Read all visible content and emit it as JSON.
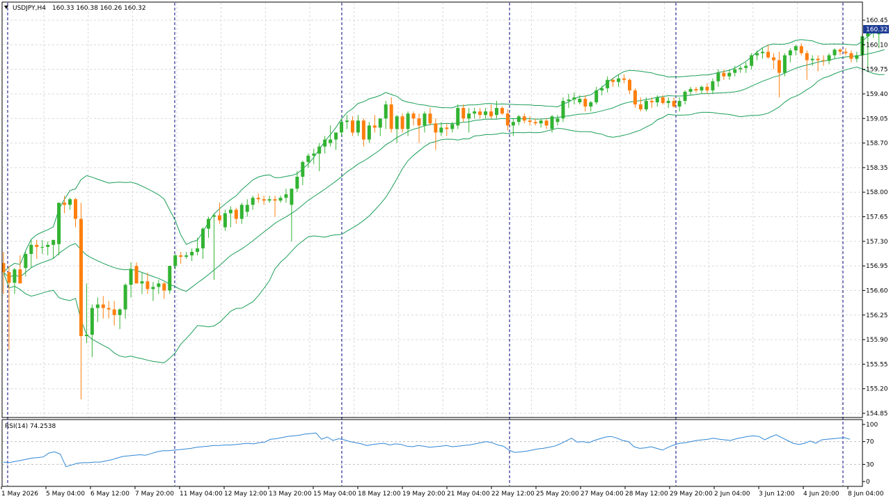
{
  "header": {
    "symbol": "USDJPY,H4",
    "ohlc": "160.33 160.38 160.26 160.32"
  },
  "price_badge": "160.32",
  "rsi_title": "RSI(14) 74.2538",
  "colors": {
    "bull": "#32b332",
    "bear": "#ff7f0e",
    "band": "#1a9e58",
    "rsi": "#2e86d4",
    "grid": "#d9d9d9",
    "separator": "#000080",
    "badge_bg": "#1e3c96"
  },
  "chart_data": [
    {
      "type": "candlestick",
      "title": "USDJPY,H4",
      "y_ticks": [
        "160.45",
        "160.10",
        "159.75",
        "159.40",
        "159.05",
        "158.70",
        "158.35",
        "158.00",
        "157.65",
        "157.30",
        "156.95",
        "156.60",
        "156.25",
        "155.90",
        "155.55",
        "155.20",
        "154.85"
      ],
      "ylim": [
        154.85,
        160.45
      ],
      "x_ticks": [
        "1 May 2026",
        "5 May 04:00",
        "6 May 12:00",
        "7 May 20:00",
        "11 May 04:00",
        "12 May 12:00",
        "13 May 20:00",
        "15 May 04:00",
        "18 May 12:00",
        "19 May 20:00",
        "21 May 04:00",
        "22 May 12:00",
        "25 May 20:00",
        "27 May 04:00",
        "28 May 12:00",
        "29 May 20:00",
        "2 Jun 04:00",
        "3 Jun 12:00",
        "4 Jun 20:00",
        "8 Jun 04:00"
      ],
      "candles": [
        [
          156.99,
          157.15,
          156.55,
          156.86
        ],
        [
          156.86,
          156.95,
          155.75,
          156.71
        ],
        [
          156.71,
          156.92,
          156.55,
          156.9
        ],
        [
          156.9,
          157.1,
          156.7,
          156.7
        ],
        [
          156.92,
          157.15,
          156.8,
          157.12
        ],
        [
          157.12,
          157.32,
          156.92,
          157.25
        ],
        [
          157.25,
          157.32,
          157.05,
          157.22
        ],
        [
          157.22,
          157.32,
          157.12,
          157.22
        ],
        [
          157.22,
          157.3,
          157.1,
          157.25
        ],
        [
          157.25,
          157.32,
          157.05,
          157.32
        ],
        [
          157.26,
          157.85,
          157.1,
          157.85
        ],
        [
          157.85,
          157.95,
          157.7,
          157.82
        ],
        [
          157.82,
          157.92,
          157.75,
          157.9
        ],
        [
          157.9,
          157.92,
          157.5,
          157.62
        ],
        [
          157.62,
          157.85,
          155.05,
          155.95
        ],
        [
          155.95,
          156.7,
          155.85,
          155.97
        ],
        [
          155.97,
          156.4,
          155.65,
          156.35
        ],
        [
          156.35,
          156.5,
          156.15,
          156.4
        ],
        [
          156.4,
          156.52,
          156.2,
          156.35
        ],
        [
          156.35,
          156.45,
          156.2,
          156.33
        ],
        [
          156.33,
          156.45,
          156.1,
          156.25
        ],
        [
          156.25,
          156.35,
          156.05,
          156.33
        ],
        [
          156.33,
          156.7,
          156.2,
          156.68
        ],
        [
          156.68,
          157.0,
          156.5,
          156.9
        ],
        [
          156.95,
          157.0,
          156.7,
          156.7
        ],
        [
          156.7,
          156.85,
          156.55,
          156.73
        ],
        [
          156.73,
          156.85,
          156.55,
          156.62
        ],
        [
          156.62,
          156.72,
          156.45,
          156.65
        ],
        [
          156.65,
          156.75,
          156.55,
          156.7
        ],
        [
          156.7,
          156.72,
          156.48,
          156.6
        ],
        [
          156.6,
          156.95,
          156.55,
          156.95
        ],
        [
          156.95,
          157.12,
          156.9,
          157.1
        ],
        [
          157.1,
          157.15,
          156.98,
          157.08
        ],
        [
          157.08,
          157.15,
          157.05,
          157.1
        ],
        [
          157.1,
          157.2,
          157.02,
          157.15
        ],
        [
          157.15,
          157.35,
          157.1,
          157.2
        ],
        [
          157.2,
          157.5,
          157.05,
          157.48
        ],
        [
          157.48,
          157.65,
          157.35,
          157.62
        ],
        [
          157.65,
          157.7,
          156.75,
          157.67
        ],
        [
          157.67,
          157.85,
          157.55,
          157.6
        ],
        [
          157.5,
          157.75,
          157.45,
          157.7
        ],
        [
          157.7,
          157.8,
          157.5,
          157.75
        ],
        [
          157.75,
          157.78,
          157.55,
          157.62
        ],
        [
          157.62,
          157.85,
          157.55,
          157.82
        ],
        [
          157.72,
          157.9,
          157.65,
          157.82
        ],
        [
          157.82,
          157.95,
          157.75,
          157.92
        ],
        [
          157.92,
          157.98,
          157.85,
          157.9
        ],
        [
          157.9,
          157.95,
          157.82,
          157.88
        ],
        [
          157.88,
          157.95,
          157.85,
          157.9
        ],
        [
          157.9,
          157.95,
          157.65,
          157.88
        ],
        [
          157.88,
          157.95,
          157.85,
          157.92
        ],
        [
          157.92,
          158.05,
          157.85,
          157.97
        ],
        [
          157.82,
          158.05,
          157.3,
          158.05
        ],
        [
          158.05,
          158.3,
          158.0,
          158.22
        ],
        [
          158.22,
          158.45,
          158.1,
          158.43
        ],
        [
          158.43,
          158.55,
          158.35,
          158.52
        ],
        [
          158.52,
          158.62,
          158.4,
          158.55
        ],
        [
          158.55,
          158.7,
          158.3,
          158.65
        ],
        [
          158.65,
          158.8,
          158.55,
          158.75
        ],
        [
          158.7,
          158.95,
          158.65,
          158.75
        ],
        [
          158.75,
          158.85,
          158.6,
          158.85
        ],
        [
          158.85,
          159.05,
          158.8,
          159.0
        ],
        [
          159.0,
          159.1,
          158.9,
          159.02
        ],
        [
          159.02,
          159.08,
          158.8,
          158.85
        ],
        [
          158.85,
          159.1,
          158.8,
          159.02
        ],
        [
          159.02,
          159.05,
          158.65,
          158.75
        ],
        [
          158.75,
          159.0,
          158.7,
          158.95
        ],
        [
          158.95,
          159.1,
          158.85,
          158.92
        ],
        [
          158.92,
          159.05,
          158.8,
          159.05
        ],
        [
          159.05,
          159.3,
          158.9,
          159.25
        ],
        [
          159.25,
          159.35,
          158.85,
          158.9
        ],
        [
          158.9,
          159.1,
          158.7,
          159.08
        ],
        [
          159.08,
          159.12,
          158.85,
          158.9
        ],
        [
          158.9,
          159.15,
          158.8,
          159.12
        ],
        [
          159.12,
          159.15,
          158.95,
          159.05
        ],
        [
          159.05,
          159.12,
          158.7,
          158.95
        ],
        [
          158.95,
          159.15,
          158.85,
          159.12
        ],
        [
          159.12,
          159.2,
          158.95,
          158.98
        ],
        [
          158.98,
          159.05,
          158.6,
          158.85
        ],
        [
          158.85,
          159.0,
          158.8,
          158.92
        ],
        [
          158.92,
          158.98,
          158.8,
          158.9
        ],
        [
          158.9,
          159.0,
          158.85,
          158.97
        ],
        [
          158.95,
          159.25,
          158.9,
          159.2
        ],
        [
          159.2,
          159.25,
          159.0,
          159.05
        ],
        [
          159.05,
          159.2,
          158.85,
          159.12
        ],
        [
          159.12,
          159.2,
          159.05,
          159.15
        ],
        [
          159.15,
          159.2,
          159.05,
          159.1
        ],
        [
          159.1,
          159.2,
          159.05,
          159.15
        ],
        [
          159.15,
          159.25,
          159.05,
          159.08
        ],
        [
          159.1,
          159.3,
          159.05,
          159.2
        ],
        [
          159.2,
          159.22,
          159.1,
          159.12
        ],
        [
          159.12,
          159.18,
          158.88,
          158.95
        ],
        [
          158.95,
          159.05,
          158.8,
          159.0
        ],
        [
          159.0,
          159.1,
          158.95,
          159.08
        ],
        [
          159.08,
          159.12,
          158.98,
          159.02
        ],
        [
          159.02,
          159.08,
          158.95,
          159.0
        ],
        [
          159.0,
          159.05,
          158.95,
          158.98
        ],
        [
          158.98,
          159.05,
          158.92,
          159.02
        ],
        [
          159.02,
          159.05,
          158.9,
          158.95
        ],
        [
          158.9,
          159.1,
          158.85,
          159.08
        ],
        [
          159.0,
          159.1,
          158.95,
          159.05
        ],
        [
          159.05,
          159.35,
          159.0,
          159.3
        ],
        [
          159.3,
          159.4,
          159.2,
          159.32
        ],
        [
          159.32,
          159.42,
          159.25,
          159.35
        ],
        [
          159.28,
          159.38,
          159.25,
          159.33
        ],
        [
          159.33,
          159.38,
          159.15,
          159.22
        ],
        [
          159.22,
          159.3,
          159.15,
          159.28
        ],
        [
          159.28,
          159.5,
          159.25,
          159.45
        ],
        [
          159.45,
          159.52,
          159.38,
          159.48
        ],
        [
          159.48,
          159.65,
          159.42,
          159.6
        ],
        [
          159.6,
          159.62,
          159.5,
          159.57
        ],
        [
          159.57,
          159.68,
          159.5,
          159.62
        ],
        [
          159.62,
          159.68,
          159.55,
          159.6
        ],
        [
          159.6,
          159.62,
          159.4,
          159.45
        ],
        [
          159.45,
          159.48,
          159.2,
          159.25
        ],
        [
          159.25,
          159.35,
          159.15,
          159.18
        ],
        [
          159.18,
          159.35,
          159.15,
          159.3
        ],
        [
          159.3,
          159.35,
          159.2,
          159.28
        ],
        [
          159.28,
          159.38,
          159.22,
          159.35
        ],
        [
          159.35,
          159.38,
          159.25,
          159.27
        ],
        [
          159.27,
          159.35,
          159.2,
          159.3
        ],
        [
          159.3,
          159.35,
          159.2,
          159.22
        ],
        [
          159.22,
          159.35,
          159.15,
          159.3
        ],
        [
          159.3,
          159.45,
          159.25,
          159.43
        ],
        [
          159.43,
          159.5,
          159.38,
          159.47
        ],
        [
          159.47,
          159.5,
          159.42,
          159.45
        ],
        [
          159.45,
          159.52,
          159.4,
          159.5
        ],
        [
          159.5,
          159.55,
          159.4,
          159.45
        ],
        [
          159.45,
          159.62,
          159.4,
          159.58
        ],
        [
          159.58,
          159.75,
          159.5,
          159.7
        ],
        [
          159.7,
          159.75,
          159.6,
          159.65
        ],
        [
          159.65,
          159.75,
          159.6,
          159.7
        ],
        [
          159.7,
          159.8,
          159.65,
          159.75
        ],
        [
          159.75,
          159.8,
          159.7,
          159.77
        ],
        [
          159.77,
          159.85,
          159.7,
          159.8
        ],
        [
          159.8,
          159.98,
          159.75,
          159.95
        ],
        [
          159.95,
          160.02,
          159.88,
          159.98
        ],
        [
          159.98,
          160.05,
          159.9,
          160.0
        ],
        [
          160.0,
          160.1,
          159.9,
          159.92
        ],
        [
          159.92,
          159.98,
          159.75,
          159.88
        ],
        [
          159.88,
          160.0,
          159.35,
          159.7
        ],
        [
          159.7,
          159.98,
          159.65,
          159.95
        ],
        [
          159.95,
          160.05,
          159.85,
          160.02
        ],
        [
          160.02,
          160.1,
          159.95,
          160.08
        ],
        [
          160.08,
          160.12,
          159.95,
          159.98
        ],
        [
          159.98,
          160.02,
          159.6,
          159.88
        ],
        [
          159.88,
          159.95,
          159.8,
          159.9
        ],
        [
          159.9,
          159.95,
          159.72,
          159.88
        ],
        [
          159.88,
          159.95,
          159.8,
          159.87
        ],
        [
          159.87,
          159.98,
          159.82,
          159.95
        ],
        [
          159.95,
          160.05,
          159.9,
          160.03
        ],
        [
          160.03,
          160.05,
          159.95,
          160.0
        ],
        [
          160.0,
          160.05,
          159.95,
          159.98
        ],
        [
          159.98,
          160.02,
          159.85,
          159.9
        ],
        [
          159.9,
          160.0,
          159.85,
          159.95
        ],
        [
          159.95,
          160.25,
          159.7,
          160.22
        ],
        [
          160.22,
          160.32,
          159.75,
          160.3
        ],
        [
          160.3,
          160.38,
          160.2,
          160.33
        ],
        [
          160.25,
          160.38,
          160.05,
          160.35
        ],
        [
          160.33,
          160.38,
          160.26,
          160.32
        ]
      ]
    },
    {
      "type": "line",
      "title": "RSI(14) 74.2538",
      "y_ticks": [
        "100",
        "70",
        "30",
        "0"
      ],
      "ylim": [
        0,
        100
      ],
      "values": [
        34,
        33,
        35,
        37,
        39,
        41,
        42,
        43,
        50,
        52,
        48,
        26,
        29,
        32,
        33,
        33,
        34,
        34,
        36,
        38,
        41,
        44,
        45,
        46,
        47,
        46,
        49,
        52,
        54,
        54,
        55,
        56,
        57,
        58,
        60,
        61,
        62,
        63,
        63,
        64,
        64,
        65,
        66,
        67,
        66,
        68,
        69,
        74,
        75,
        77,
        79,
        80,
        81,
        83,
        84,
        85,
        74,
        78,
        72,
        75,
        73,
        70,
        68,
        66,
        63,
        65,
        66,
        67,
        64,
        66,
        65,
        62,
        61,
        63,
        62,
        60,
        61,
        62,
        63,
        61,
        62,
        63,
        64,
        66,
        68,
        70,
        68,
        64,
        62,
        55,
        51,
        52,
        53,
        55,
        57,
        58,
        60,
        62,
        66,
        71,
        76,
        69,
        70,
        68,
        72,
        75,
        78,
        79,
        76,
        72,
        70,
        61,
        58,
        59,
        61,
        58,
        55,
        60,
        64,
        67,
        68,
        70,
        72,
        73,
        74,
        76,
        74,
        73,
        72,
        75,
        77,
        79,
        80,
        79,
        73,
        78,
        82,
        77,
        72,
        67,
        65,
        67,
        71,
        67,
        73,
        74,
        75,
        76,
        77,
        74
      ]
    }
  ]
}
